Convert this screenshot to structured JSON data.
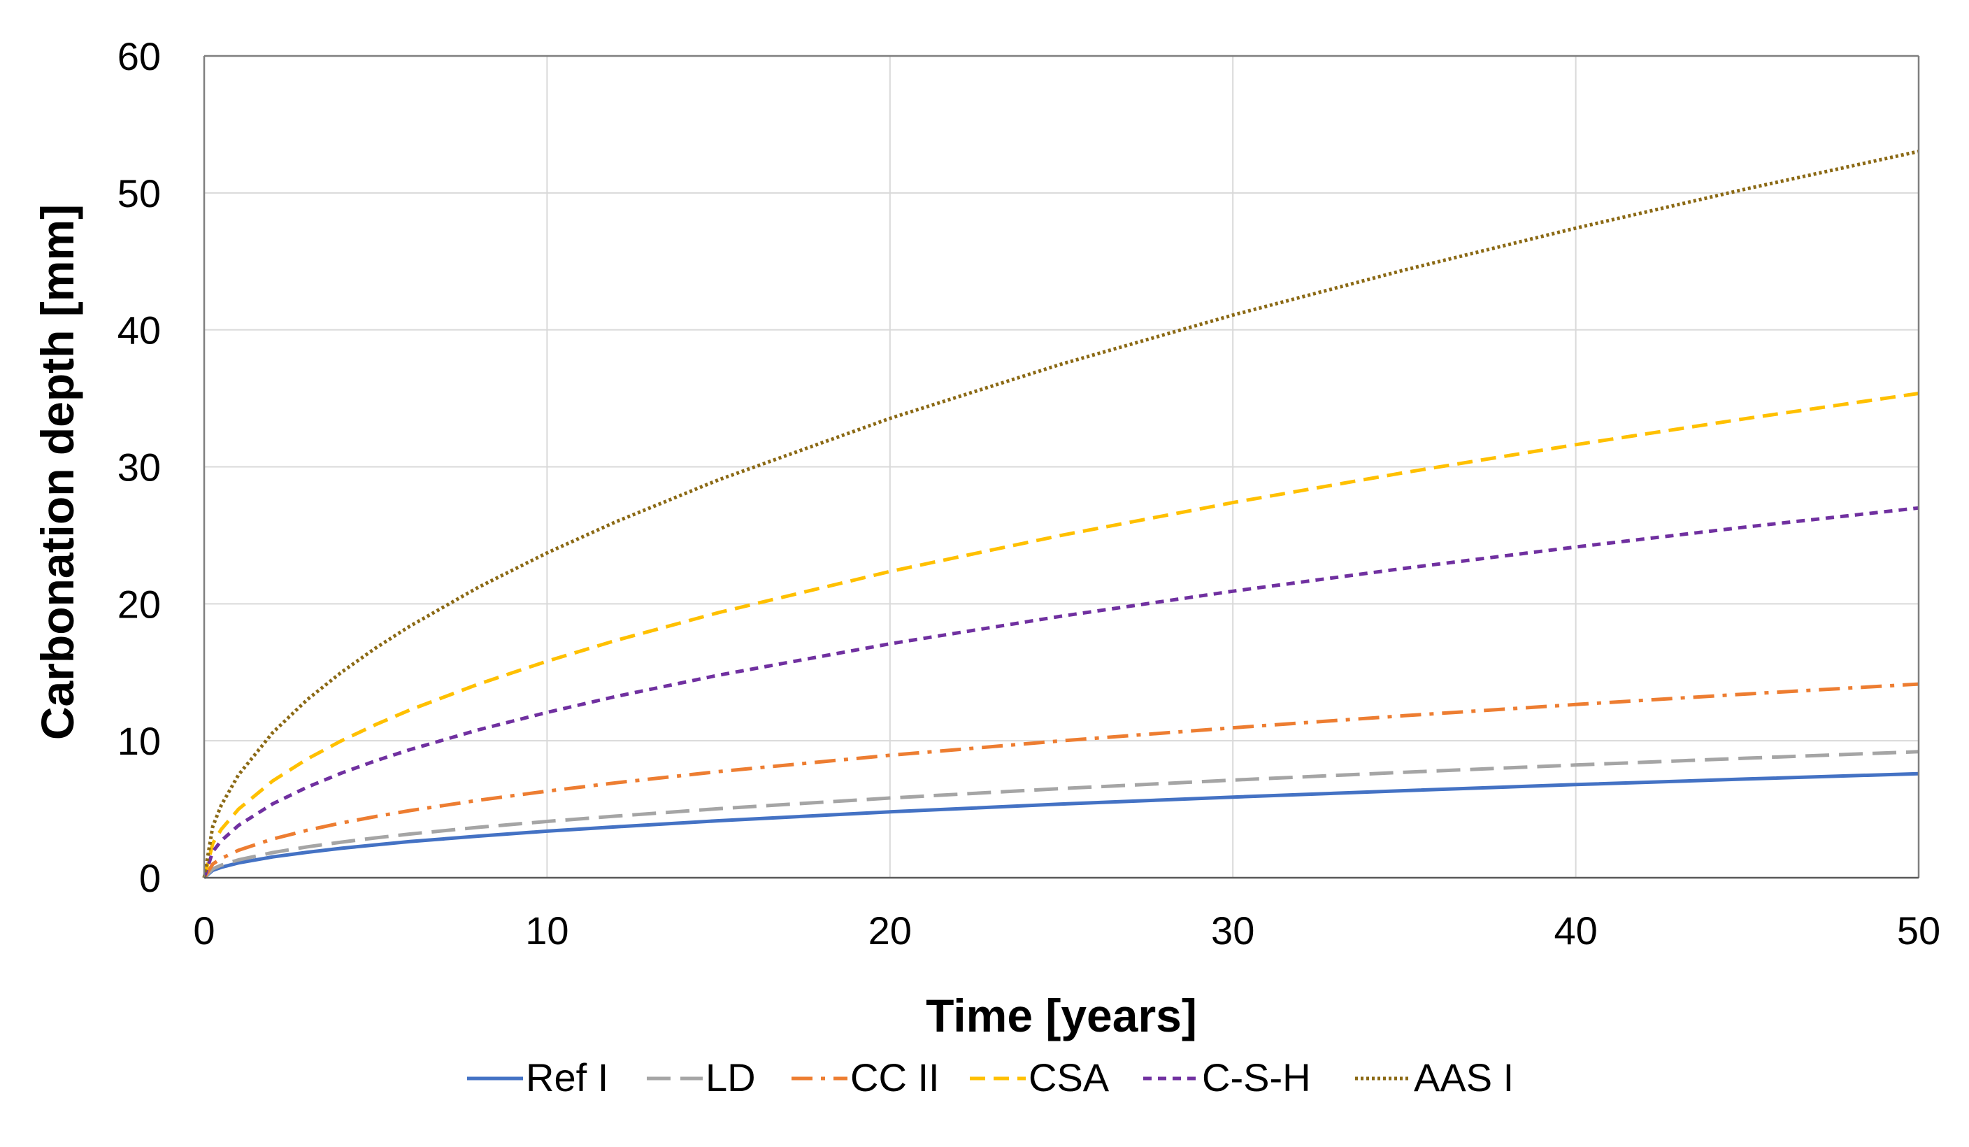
{
  "chart_data": {
    "type": "line",
    "title": "",
    "xlabel": "Time [years]",
    "ylabel": "Carbonation depth [mm]",
    "xlim": [
      0,
      50
    ],
    "ylim": [
      0,
      60
    ],
    "xticks": [
      0,
      10,
      20,
      30,
      40,
      50
    ],
    "yticks": [
      0,
      10,
      20,
      30,
      40,
      50,
      60
    ],
    "grid": true,
    "legend_position": "bottom",
    "x": [
      0,
      0.25,
      0.5,
      1,
      2,
      3,
      4,
      5,
      6,
      8,
      10,
      12,
      15,
      20,
      25,
      30,
      35,
      40,
      45,
      50
    ],
    "series": [
      {
        "name": "Ref I",
        "color": "#4472C4",
        "style": "solid",
        "values": [
          0,
          0.54,
          0.76,
          1.08,
          1.52,
          1.86,
          2.15,
          2.4,
          2.64,
          3.04,
          3.4,
          3.72,
          4.16,
          4.81,
          5.38,
          5.89,
          6.36,
          6.8,
          7.21,
          7.6
        ]
      },
      {
        "name": "LD",
        "color": "#A5A5A5",
        "style": "longdash",
        "values": [
          0,
          0.65,
          0.92,
          1.3,
          1.84,
          2.25,
          2.6,
          2.91,
          3.19,
          3.68,
          4.11,
          4.5,
          5.04,
          5.82,
          6.51,
          7.13,
          7.7,
          8.23,
          8.73,
          9.2
        ]
      },
      {
        "name": "CC II",
        "color": "#ED7D31",
        "style": "dashdot",
        "values": [
          0,
          1.0,
          1.41,
          2.0,
          2.83,
          3.46,
          4.0,
          4.47,
          4.9,
          5.66,
          6.32,
          6.93,
          7.75,
          8.94,
          10.0,
          10.95,
          11.83,
          12.65,
          13.42,
          14.14
        ]
      },
      {
        "name": "CSA",
        "color": "#FFC000",
        "style": "dash",
        "values": [
          0,
          2.5,
          3.54,
          5.0,
          7.07,
          8.66,
          10.0,
          11.18,
          12.25,
          14.14,
          15.81,
          17.32,
          19.36,
          22.36,
          25.0,
          27.39,
          29.58,
          31.62,
          33.54,
          35.36
        ]
      },
      {
        "name": "C-S-H",
        "color": "#7030A0",
        "style": "shortdash",
        "values": [
          0,
          1.91,
          2.7,
          3.82,
          5.4,
          6.61,
          7.64,
          8.54,
          9.35,
          10.8,
          12.07,
          13.23,
          14.79,
          17.08,
          19.1,
          20.92,
          22.59,
          24.15,
          25.62,
          27.0
        ]
      },
      {
        "name": "AAS I",
        "color": "#8B6914",
        "style": "dot",
        "values": [
          0,
          3.75,
          5.3,
          7.5,
          10.6,
          12.99,
          15.0,
          16.77,
          18.37,
          21.21,
          23.72,
          25.98,
          29.05,
          33.54,
          37.5,
          41.08,
          44.37,
          47.43,
          50.31,
          53.03
        ]
      }
    ]
  }
}
